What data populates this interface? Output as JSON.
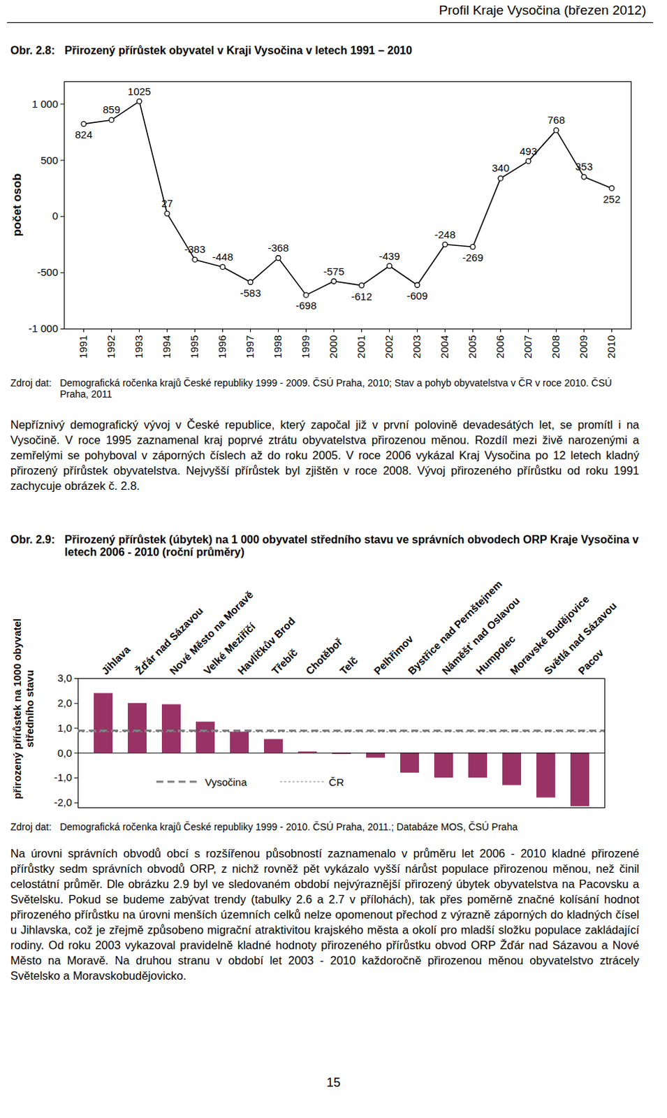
{
  "header": "Profil Kraje Vysočina (březen 2012)",
  "chart_data": [
    {
      "type": "line",
      "figure": "Obr. 2.8:",
      "title": "Přirozený přírůstek obyvatel v Kraji Vysočina v letech 1991 – 2010",
      "ylabel": "počet osob",
      "categories": [
        "1991",
        "1992",
        "1993",
        "1994",
        "1995",
        "1996",
        "1997",
        "1998",
        "1999",
        "2000",
        "2001",
        "2002",
        "2003",
        "2004",
        "2005",
        "2006",
        "2007",
        "2008",
        "2009",
        "2010"
      ],
      "values": [
        824,
        859,
        1025,
        27,
        -383,
        -448,
        -583,
        -368,
        -698,
        -575,
        -612,
        -439,
        -609,
        -248,
        -269,
        340,
        493,
        768,
        353,
        252
      ],
      "ylim": [
        -1000,
        1200
      ],
      "yticks": [
        {
          "value": -1000,
          "label": "-1 000"
        },
        -500,
        0,
        500,
        {
          "value": 1000,
          "label": "1 000"
        }
      ],
      "color": "#000000",
      "marker": "circle",
      "data_labels": true,
      "grid": false,
      "source_label": "Zdroj dat:",
      "source": "Demografická ročenka krajů České republiky 1999 - 2009. ČSÚ Praha, 2010; Stav a pohyb obyvatelstva v ČR v roce 2010. ČSÚ Praha, 2011"
    },
    {
      "type": "bar",
      "figure": "Obr. 2.9:",
      "title": "Přirozený přírůstek (úbytek) na 1 000 obyvatel středního stavu ve správních obvodech ORP Kraje Vysočina v letech 2006 - 2010 (roční průměry)",
      "ylabel": "přirozený přírůstek na 1000 obyvatel středního stavu",
      "categories": [
        "Jihlava",
        "Žďár nad Sázavou",
        "Nové Město na Moravě",
        "Velké Meziříčí",
        "Havlíčkův Brod",
        "Třebíč",
        "Chotěboř",
        "Telč",
        "Pelhřimov",
        "Bystřice nad Pernštejnem",
        "Náměšť nad Oslavou",
        "Humpolec",
        "Moravské Budějovice",
        "Světlá nad Sázavou",
        "Pacov"
      ],
      "values": [
        2.4,
        2.0,
        1.95,
        1.25,
        0.85,
        0.55,
        0.05,
        -0.05,
        -0.2,
        -0.8,
        -1.0,
        -1.0,
        -1.3,
        -1.8,
        -2.15
      ],
      "color": "#993366",
      "ylim": [
        -2.2,
        3
      ],
      "yticks": [
        {
          "value": -2,
          "label": "-2,0"
        },
        {
          "value": -1,
          "label": "-1,0"
        },
        {
          "value": 0,
          "label": "0,0"
        },
        {
          "value": 1,
          "label": "1,0"
        },
        {
          "value": 2,
          "label": "2,0"
        },
        {
          "value": 3,
          "label": "3,0"
        }
      ],
      "grid": false,
      "legend": "bottom-left",
      "reference_lines": [
        {
          "name": "Vysočina",
          "value": 0.9,
          "line_style": "dashed",
          "color": "#808080"
        },
        {
          "name": "ČR",
          "value": 0.85,
          "line_style": "dotted",
          "color": "#808080"
        }
      ],
      "source_label": "Zdroj dat:",
      "source": "Demografická ročenka krajů České republiky 1999 - 2010. ČSÚ Praha, 2011.; Databáze MOS, ČSÚ Praha"
    }
  ],
  "paragraphs": [
    "Nepříznivý demografický vývoj v České republice, který započal již v první polovině devadesátých let, se promítl i na Vysočině. V roce 1995 zaznamenal kraj poprvé ztrátu obyvatelstva přirozenou měnou. Rozdíl mezi živě narozenými a zemřelými se pohyboval v záporných číslech až do roku 2005. V roce 2006 vykázal Kraj Vysočina po 12 letech kladný přirozený přírůstek obyvatelstva. Nejvyšší přírůstek byl zjištěn v roce 2008. Vývoj přirozeného přírůstku od roku 1991 zachycuje obrázek č. 2.8.",
    "Na úrovni správních obvodů obcí s rozšířenou působností zaznamenalo v průměru let 2006 - 2010 kladné přirozené přírůstky sedm správních obvodů ORP, z nichž rovněž pět vykázalo vyšší nárůst populace přirozenou měnou, než činil celostátní průměr. Dle obrázku 2.9 byl ve sledovaném období nejvýraznější přirozený úbytek obyvatelstva na Pacovsku a Světelsku. Pokud se budeme zabývat trendy (tabulky 2.6 a 2.7 v přílohách), tak přes poměrně značné kolísání hodnot přirozeného přírůstku na úrovni menších územních celků nelze opomenout přechod z výrazně záporných do kladných čísel u Jihlavska, což je zřejmě způsobeno migrační atraktivitou krajského města a okolí pro mladší složku populace zakládající rodiny. Od roku 2003 vykazoval pravidelně kladné hodnoty přirozeného přírůstku obvod ORP Žďár nad Sázavou a Nové Město na Moravě. Na druhou stranu v období let 2003 - 2010 každoročně přirozenou měnou obyvatelstvo ztrácely Světelsko a Moravskobudějovicko."
  ],
  "page_number": 15
}
